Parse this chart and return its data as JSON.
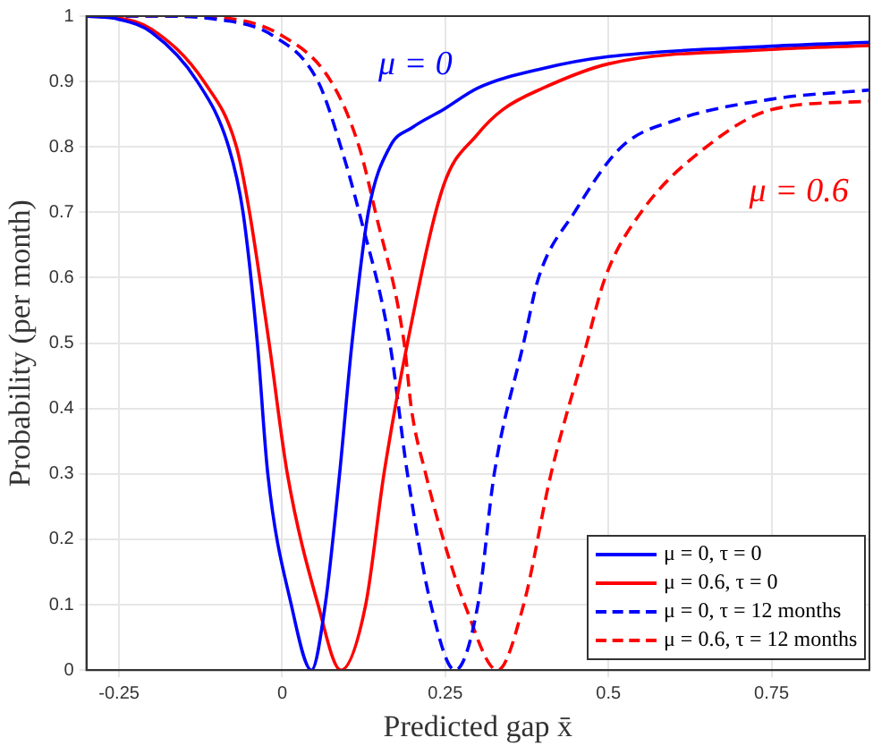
{
  "chart_data": {
    "type": "line",
    "xlabel": "Predicted gap x̄",
    "ylabel": "Probability (per month)",
    "xlim": [
      -0.3,
      0.9
    ],
    "xticks": [
      -0.25,
      0,
      0.25,
      0.5,
      0.75
    ],
    "ylim": [
      0,
      1
    ],
    "yticks": [
      0,
      0.1,
      0.2,
      0.3,
      0.4,
      0.5,
      0.6,
      0.7,
      0.8,
      0.9,
      1
    ],
    "grid": true,
    "legend": "bottom right",
    "marker": "none",
    "annotations": [
      "μ = 0",
      "μ = 0.6"
    ],
    "series": [
      {
        "name": "μ = 0, τ = 0",
        "color": "#0000ff",
        "line_style": "solid",
        "x": [
          -0.3,
          -0.25,
          -0.2,
          -0.13,
          -0.082,
          -0.06,
          -0.038,
          -0.022,
          0.014,
          0.045,
          0.066,
          0.088,
          0.107,
          0.132,
          0.165,
          0.2,
          0.247,
          0.3,
          0.4,
          0.5,
          0.75,
          0.9
        ],
        "values": [
          1,
          0.995,
          0.975,
          0.9,
          0.8,
          0.7,
          0.5,
          0.3,
          0.1,
          0,
          0.1,
          0.3,
          0.5,
          0.7,
          0.8,
          0.83,
          0.857,
          0.89,
          0.92,
          0.938,
          0.954,
          0.96
        ]
      },
      {
        "name": "μ = 0.6, τ = 0",
        "color": "#ff0000",
        "line_style": "solid",
        "x": [
          -0.3,
          -0.25,
          -0.2,
          -0.12,
          -0.07,
          -0.05,
          -0.02,
          0.008,
          0.055,
          0.09,
          0.128,
          0.156,
          0.192,
          0.247,
          0.3,
          0.338,
          0.4,
          0.5,
          0.75,
          0.9
        ],
        "values": [
          1,
          0.997,
          0.98,
          0.9,
          0.8,
          0.7,
          0.5,
          0.3,
          0.1,
          0,
          0.1,
          0.3,
          0.5,
          0.74,
          0.82,
          0.857,
          0.89,
          0.927,
          0.949,
          0.955
        ]
      },
      {
        "name": "μ = 0, τ = 12 months",
        "color": "#0000ff",
        "line_style": "dashed",
        "x": [
          -0.3,
          -0.2,
          -0.1,
          -0.014,
          0.055,
          0.09,
          0.118,
          0.165,
          0.192,
          0.228,
          0.265,
          0.3,
          0.325,
          0.37,
          0.393,
          0.448,
          0.52,
          0.6,
          0.75,
          0.9
        ],
        "values": [
          1,
          1,
          0.995,
          0.97,
          0.9,
          0.8,
          0.7,
          0.5,
          0.3,
          0.1,
          0,
          0.1,
          0.3,
          0.5,
          0.6,
          0.7,
          0.8,
          0.84,
          0.873,
          0.887
        ]
      },
      {
        "name": "μ = 0.6, τ = 12 months",
        "color": "#ff0000",
        "line_style": "dashed",
        "x": [
          -0.3,
          -0.2,
          -0.1,
          0,
          0.075,
          0.118,
          0.143,
          0.187,
          0.198,
          0.22,
          0.247,
          0.28,
          0.33,
          0.37,
          0.412,
          0.467,
          0.495,
          0.55,
          0.65,
          0.75,
          0.9
        ],
        "values": [
          1,
          1,
          0.998,
          0.97,
          0.9,
          0.8,
          0.7,
          0.5,
          0.4,
          0.3,
          0.2,
          0.1,
          0,
          0.1,
          0.3,
          0.5,
          0.6,
          0.7,
          0.8,
          0.857,
          0.87
        ]
      }
    ]
  }
}
